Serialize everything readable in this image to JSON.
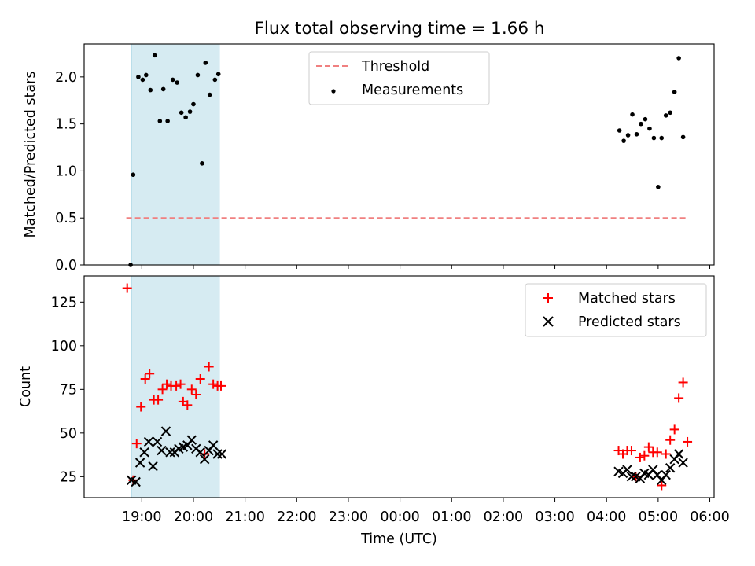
{
  "title": "Flux total observing time = 1.66 h",
  "colors": {
    "threshold": "#f08080",
    "measurements": "#000000",
    "matched": "#ff0000",
    "predicted": "#000000",
    "shade": "#add8e6"
  },
  "chart_data": [
    {
      "type": "scatter",
      "ylabel": "Matched/Predicted stars",
      "ylim": [
        0,
        2.35
      ],
      "yticks": [
        "0.0",
        "0.5",
        "1.0",
        "1.5",
        "2.0"
      ],
      "shaded_interval": [
        "18:48",
        "20:30"
      ],
      "legend_position": "top-center",
      "threshold": {
        "name": "Threshold",
        "y": 0.5,
        "x_range": [
          "18:42",
          "05:33"
        ],
        "style": "dashed"
      },
      "series": [
        {
          "name": "Measurements",
          "points": [
            [
              "18:47",
              0.0
            ],
            [
              "18:50",
              0.96
            ],
            [
              "18:56",
              2.0
            ],
            [
              "19:01",
              1.97
            ],
            [
              "19:05",
              2.02
            ],
            [
              "19:10",
              1.86
            ],
            [
              "19:15",
              2.23
            ],
            [
              "19:21",
              1.53
            ],
            [
              "19:25",
              1.87
            ],
            [
              "19:30",
              1.53
            ],
            [
              "19:36",
              1.97
            ],
            [
              "19:41",
              1.94
            ],
            [
              "19:46",
              1.62
            ],
            [
              "19:51",
              1.57
            ],
            [
              "19:56",
              1.63
            ],
            [
              "20:00",
              1.71
            ],
            [
              "20:05",
              2.02
            ],
            [
              "20:10",
              1.08
            ],
            [
              "20:14",
              2.15
            ],
            [
              "20:19",
              1.81
            ],
            [
              "20:25",
              1.97
            ],
            [
              "20:29",
              2.03
            ],
            [
              "04:15",
              1.43
            ],
            [
              "04:20",
              1.32
            ],
            [
              "04:25",
              1.38
            ],
            [
              "04:30",
              1.6
            ],
            [
              "04:35",
              1.39
            ],
            [
              "04:40",
              1.5
            ],
            [
              "04:45",
              1.55
            ],
            [
              "04:50",
              1.45
            ],
            [
              "04:55",
              1.35
            ],
            [
              "05:00",
              0.83
            ],
            [
              "05:04",
              1.35
            ],
            [
              "05:09",
              1.59
            ],
            [
              "05:14",
              1.62
            ],
            [
              "05:19",
              1.84
            ],
            [
              "05:24",
              2.2
            ],
            [
              "05:29",
              1.36
            ]
          ]
        }
      ]
    },
    {
      "type": "scatter",
      "ylabel": "Count",
      "xlabel": "Time (UTC)",
      "ylim": [
        13,
        140
      ],
      "yticks": [
        "25",
        "50",
        "75",
        "100",
        "125"
      ],
      "xticks": [
        "19:00",
        "20:00",
        "21:00",
        "22:00",
        "23:00",
        "00:00",
        "01:00",
        "02:00",
        "03:00",
        "04:00",
        "05:00",
        "06:00"
      ],
      "shaded_interval": [
        "18:48",
        "20:30"
      ],
      "legend_position": "top-right",
      "series": [
        {
          "name": "Matched stars",
          "marker": "plus",
          "points": [
            [
              "18:43",
              133
            ],
            [
              "18:50",
              23
            ],
            [
              "18:54",
              44
            ],
            [
              "18:59",
              65
            ],
            [
              "19:04",
              81
            ],
            [
              "19:09",
              84
            ],
            [
              "19:14",
              69
            ],
            [
              "19:19",
              69
            ],
            [
              "19:24",
              75
            ],
            [
              "19:29",
              78
            ],
            [
              "19:34",
              77
            ],
            [
              "19:40",
              77
            ],
            [
              "19:45",
              78
            ],
            [
              "19:48",
              68
            ],
            [
              "19:53",
              66
            ],
            [
              "19:58",
              75
            ],
            [
              "20:03",
              72
            ],
            [
              "20:08",
              81
            ],
            [
              "20:13",
              38
            ],
            [
              "20:18",
              88
            ],
            [
              "20:23",
              78
            ],
            [
              "20:28",
              77
            ],
            [
              "20:32",
              77
            ],
            [
              "04:14",
              40
            ],
            [
              "04:19",
              38
            ],
            [
              "04:24",
              40
            ],
            [
              "04:29",
              40
            ],
            [
              "04:34",
              25
            ],
            [
              "04:39",
              36
            ],
            [
              "04:44",
              37
            ],
            [
              "04:49",
              42
            ],
            [
              "04:54",
              39
            ],
            [
              "04:59",
              39
            ],
            [
              "05:04",
              20
            ],
            [
              "05:09",
              38
            ],
            [
              "05:14",
              46
            ],
            [
              "05:19",
              52
            ],
            [
              "05:24",
              70
            ],
            [
              "05:29",
              79
            ],
            [
              "05:34",
              45
            ]
          ]
        },
        {
          "name": "Predicted stars",
          "marker": "x",
          "points": [
            [
              "18:48",
              23
            ],
            [
              "18:53",
              22
            ],
            [
              "18:58",
              33
            ],
            [
              "19:03",
              39
            ],
            [
              "19:08",
              45
            ],
            [
              "19:13",
              31
            ],
            [
              "19:18",
              45
            ],
            [
              "19:23",
              40
            ],
            [
              "19:28",
              51
            ],
            [
              "19:33",
              39
            ],
            [
              "19:38",
              39
            ],
            [
              "19:43",
              41
            ],
            [
              "19:48",
              42
            ],
            [
              "19:53",
              43
            ],
            [
              "19:58",
              46
            ],
            [
              "20:03",
              41
            ],
            [
              "20:08",
              39
            ],
            [
              "20:13",
              35
            ],
            [
              "20:18",
              40
            ],
            [
              "20:23",
              43
            ],
            [
              "20:28",
              38
            ],
            [
              "20:33",
              38
            ],
            [
              "04:14",
              28
            ],
            [
              "04:19",
              27
            ],
            [
              "04:24",
              29
            ],
            [
              "04:29",
              25
            ],
            [
              "04:34",
              25
            ],
            [
              "04:39",
              24
            ],
            [
              "04:44",
              27
            ],
            [
              "04:49",
              26
            ],
            [
              "04:54",
              29
            ],
            [
              "04:59",
              26
            ],
            [
              "05:04",
              23
            ],
            [
              "05:09",
              26
            ],
            [
              "05:14",
              30
            ],
            [
              "05:19",
              35
            ],
            [
              "05:24",
              38
            ],
            [
              "05:29",
              33
            ]
          ]
        }
      ]
    }
  ]
}
